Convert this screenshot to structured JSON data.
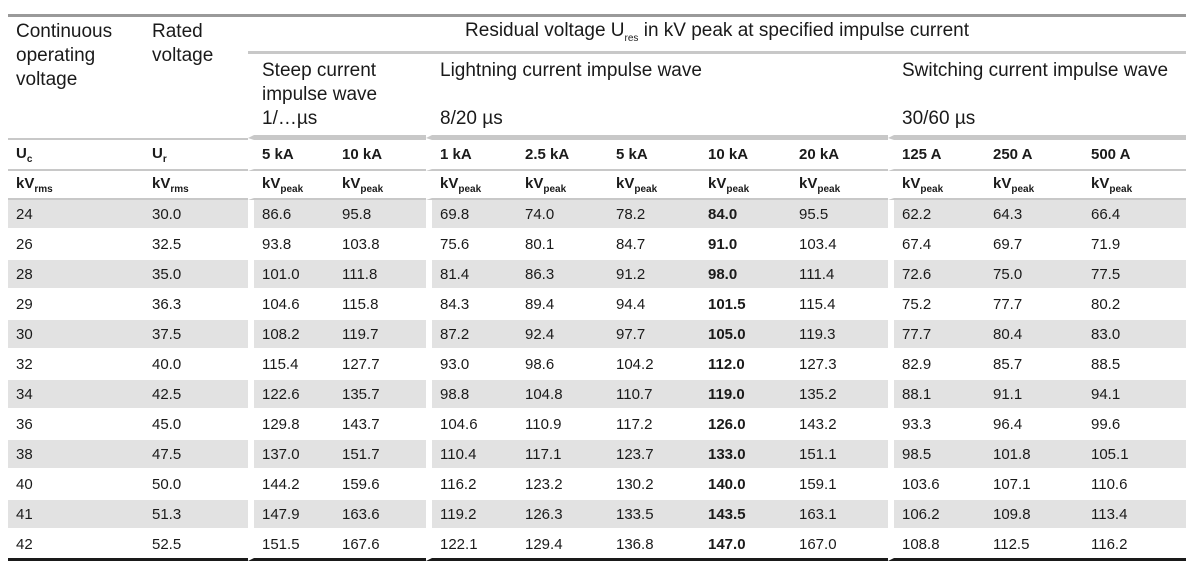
{
  "header": {
    "col_uc_title": "Continuous operating voltage",
    "col_ur_title": "Rated voltage",
    "main_title_prefix": "Residual voltage U",
    "main_title_sub": "res",
    "main_title_suffix": " in kV peak at specified impulse current",
    "groups": [
      {
        "title": "Steep current impulse wave",
        "wave": "1/…µs"
      },
      {
        "title": "Lightning current impulse wave",
        "wave": "8/20 µs"
      },
      {
        "title": "Switching current impulse wave",
        "wave": "30/60 µs"
      }
    ],
    "sym_uc": "U",
    "sym_uc_sub": "c",
    "sym_ur": "U",
    "sym_ur_sub": "r",
    "currents": [
      "5 kA",
      "10 kA",
      "1 kA",
      "2.5 kA",
      "5 kA",
      "10 kA",
      "20 kA",
      "125 A",
      "250 A",
      "500 A"
    ],
    "unit_rms": "kV",
    "unit_rms_sub": "rms",
    "unit_peak": "kV",
    "unit_peak_sub": "peak"
  },
  "rows": [
    [
      "24",
      "30.0",
      "86.6",
      "95.8",
      "69.8",
      "74.0",
      "78.2",
      "84.0",
      "95.5",
      "62.2",
      "64.3",
      "66.4"
    ],
    [
      "26",
      "32.5",
      "93.8",
      "103.8",
      "75.6",
      "80.1",
      "84.7",
      "91.0",
      "103.4",
      "67.4",
      "69.7",
      "71.9"
    ],
    [
      "28",
      "35.0",
      "101.0",
      "111.8",
      "81.4",
      "86.3",
      "91.2",
      "98.0",
      "111.4",
      "72.6",
      "75.0",
      "77.5"
    ],
    [
      "29",
      "36.3",
      "104.6",
      "115.8",
      "84.3",
      "89.4",
      "94.4",
      "101.5",
      "115.4",
      "75.2",
      "77.7",
      "80.2"
    ],
    [
      "30",
      "37.5",
      "108.2",
      "119.7",
      "87.2",
      "92.4",
      "97.7",
      "105.0",
      "119.3",
      "77.7",
      "80.4",
      "83.0"
    ],
    [
      "32",
      "40.0",
      "115.4",
      "127.7",
      "93.0",
      "98.6",
      "104.2",
      "112.0",
      "127.3",
      "82.9",
      "85.7",
      "88.5"
    ],
    [
      "34",
      "42.5",
      "122.6",
      "135.7",
      "98.8",
      "104.8",
      "110.7",
      "119.0",
      "135.2",
      "88.1",
      "91.1",
      "94.1"
    ],
    [
      "36",
      "45.0",
      "129.8",
      "143.7",
      "104.6",
      "110.9",
      "117.2",
      "126.0",
      "143.2",
      "93.3",
      "96.4",
      "99.6"
    ],
    [
      "38",
      "47.5",
      "137.0",
      "151.7",
      "110.4",
      "117.1",
      "123.7",
      "133.0",
      "151.1",
      "98.5",
      "101.8",
      "105.1"
    ],
    [
      "40",
      "50.0",
      "144.2",
      "159.6",
      "116.2",
      "123.2",
      "130.2",
      "140.0",
      "159.1",
      "103.6",
      "107.1",
      "110.6"
    ],
    [
      "41",
      "51.3",
      "147.9",
      "163.6",
      "119.2",
      "126.3",
      "133.5",
      "143.5",
      "163.1",
      "106.2",
      "109.8",
      "113.4"
    ],
    [
      "42",
      "52.5",
      "151.5",
      "167.6",
      "122.1",
      "129.4",
      "136.8",
      "147.0",
      "167.0",
      "108.8",
      "112.5",
      "116.2"
    ]
  ],
  "bold_column_index": 7
}
